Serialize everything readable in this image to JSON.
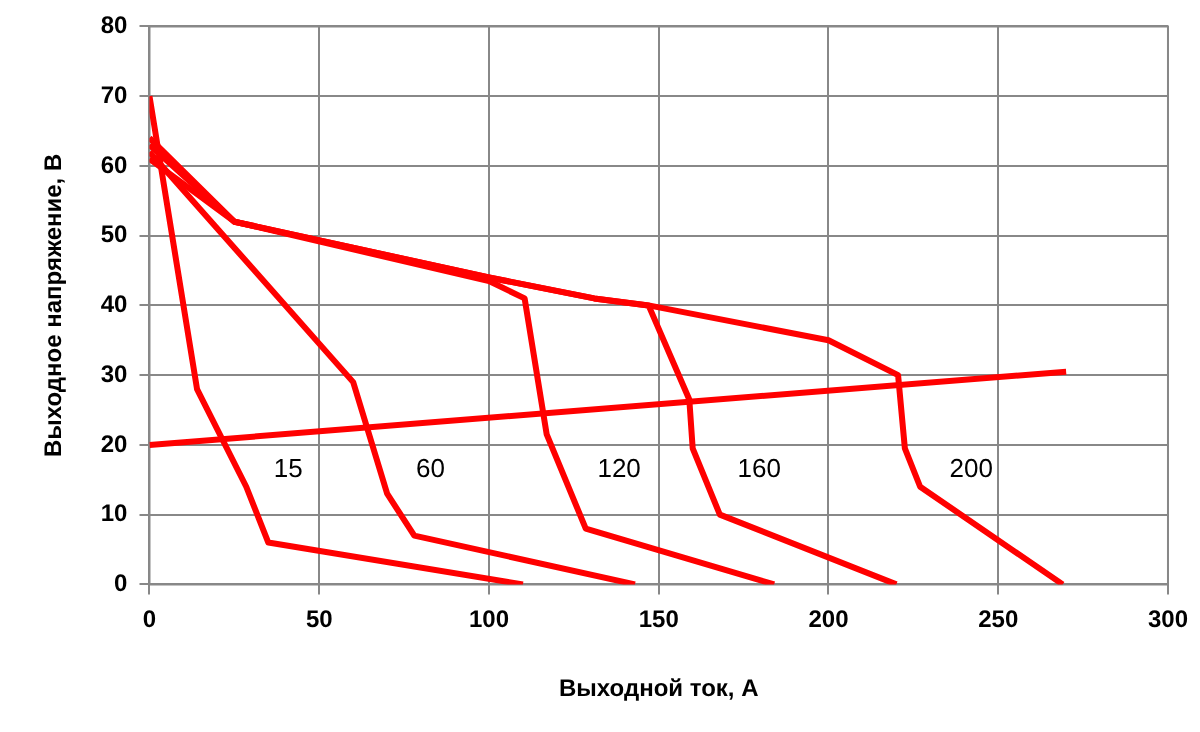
{
  "chart_data": {
    "type": "line",
    "xlabel": "Выходной ток, А",
    "ylabel": "Выходное напряжение, В",
    "xlim": [
      0,
      300
    ],
    "xticks": [
      0,
      50,
      100,
      150,
      200,
      250,
      300
    ],
    "ylim": [
      0,
      80
    ],
    "yticks": [
      0,
      10,
      20,
      30,
      40,
      50,
      60,
      70,
      80
    ],
    "grid": true,
    "legend": false,
    "marker": "none",
    "line_style": "solid",
    "series": [
      {
        "name": "15",
        "color": "#ff0000",
        "x": [
          0,
          14,
          28.5,
          35,
          110
        ],
        "values": [
          70,
          28,
          14,
          6,
          0
        ]
      },
      {
        "name": "60",
        "color": "#ff0000",
        "x": [
          0,
          60,
          70,
          78,
          143
        ],
        "values": [
          62,
          29,
          13,
          7,
          0
        ]
      },
      {
        "name": "120",
        "color": "#ff0000",
        "x": [
          0,
          25,
          100,
          110.5,
          117,
          128.5,
          184
        ],
        "values": [
          61,
          52,
          43.5,
          41,
          21.5,
          8,
          0
        ]
      },
      {
        "name": "160",
        "color": "#ff0000",
        "x": [
          0,
          25,
          100,
          131,
          147,
          159,
          160,
          168,
          220
        ],
        "values": [
          63,
          52,
          44,
          41,
          40,
          26.5,
          19.5,
          10,
          0
        ]
      },
      {
        "name": "200",
        "color": "#ff0000",
        "x": [
          0,
          25,
          100,
          131,
          147,
          200,
          220.5,
          222.5,
          227,
          269
        ],
        "values": [
          64,
          52,
          44,
          41,
          40,
          35,
          30,
          19.5,
          14,
          0
        ]
      },
      {
        "color": "#ff0000",
        "x": [
          0,
          270
        ],
        "values": [
          20,
          30.5
        ]
      }
    ]
  }
}
